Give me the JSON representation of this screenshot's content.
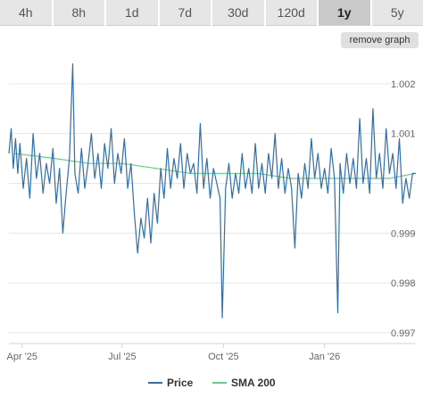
{
  "tabs": [
    {
      "label": "4h"
    },
    {
      "label": "8h"
    },
    {
      "label": "1d"
    },
    {
      "label": "7d"
    },
    {
      "label": "30d"
    },
    {
      "label": "120d"
    },
    {
      "label": "1y",
      "active": true
    },
    {
      "label": "5y"
    }
  ],
  "remove_graph_label": "remove graph",
  "colors": {
    "price": "#2f6fab",
    "sma": "#5fd38a",
    "grid": "#e6e6e6"
  },
  "chart_data": {
    "type": "line",
    "ylim": [
      0.9968,
      1.0025
    ],
    "yticks": [
      0.997,
      0.998,
      0.999,
      1.0,
      1.001,
      1.002
    ],
    "ytick_labels": [
      "0.997",
      "0.998",
      "0.999",
      "",
      "1.001",
      "1.002"
    ],
    "xrange": [
      "2025-03-20",
      "2026-03-25"
    ],
    "xticks": [
      {
        "date": "2025-04-01",
        "label": "Apr '25"
      },
      {
        "date": "2025-07-01",
        "label": "Jul '25"
      },
      {
        "date": "2025-10-01",
        "label": "Oct '25"
      },
      {
        "date": "2026-01-01",
        "label": "Jan '26"
      }
    ],
    "legend_position": "bottom",
    "series": [
      {
        "name": "Price",
        "values": [
          [
            "2025-03-20",
            1.0006
          ],
          [
            "2025-03-22",
            1.0011
          ],
          [
            "2025-03-24",
            1.0003
          ],
          [
            "2025-03-26",
            1.0009
          ],
          [
            "2025-03-28",
            1.0002
          ],
          [
            "2025-03-30",
            1.0008
          ],
          [
            "2025-04-02",
            0.9999
          ],
          [
            "2025-04-05",
            1.0005
          ],
          [
            "2025-04-08",
            0.9997
          ],
          [
            "2025-04-11",
            1.001
          ],
          [
            "2025-04-14",
            1.0001
          ],
          [
            "2025-04-17",
            1.0006
          ],
          [
            "2025-04-20",
            0.9998
          ],
          [
            "2025-04-23",
            1.0004
          ],
          [
            "2025-04-26",
            1.0
          ],
          [
            "2025-04-29",
            1.0007
          ],
          [
            "2025-05-02",
            0.9996
          ],
          [
            "2025-05-05",
            1.0003
          ],
          [
            "2025-05-08",
            0.999
          ],
          [
            "2025-05-11",
            0.9998
          ],
          [
            "2025-05-14",
            1.0005
          ],
          [
            "2025-05-17",
            1.0024
          ],
          [
            "2025-05-19",
            1.0002
          ],
          [
            "2025-05-22",
            0.9998
          ],
          [
            "2025-05-25",
            1.0007
          ],
          [
            "2025-05-28",
            0.9999
          ],
          [
            "2025-05-31",
            1.0004
          ],
          [
            "2025-06-03",
            1.001
          ],
          [
            "2025-06-06",
            1.0001
          ],
          [
            "2025-06-09",
            1.0006
          ],
          [
            "2025-06-12",
            0.9999
          ],
          [
            "2025-06-15",
            1.0008
          ],
          [
            "2025-06-18",
            1.0003
          ],
          [
            "2025-06-21",
            1.0011
          ],
          [
            "2025-06-24",
            1.0
          ],
          [
            "2025-06-27",
            1.0006
          ],
          [
            "2025-06-30",
            1.0002
          ],
          [
            "2025-07-03",
            1.0009
          ],
          [
            "2025-07-06",
            0.9999
          ],
          [
            "2025-07-09",
            1.0004
          ],
          [
            "2025-07-12",
            0.9994
          ],
          [
            "2025-07-15",
            0.9986
          ],
          [
            "2025-07-18",
            0.9993
          ],
          [
            "2025-07-21",
            0.9989
          ],
          [
            "2025-07-24",
            0.9997
          ],
          [
            "2025-07-27",
            0.9988
          ],
          [
            "2025-07-30",
            0.9998
          ],
          [
            "2025-08-02",
            0.9992
          ],
          [
            "2025-08-05",
            1.0003
          ],
          [
            "2025-08-08",
            0.9997
          ],
          [
            "2025-08-11",
            1.0007
          ],
          [
            "2025-08-14",
            0.9999
          ],
          [
            "2025-08-17",
            1.0005
          ],
          [
            "2025-08-20",
            1.0001
          ],
          [
            "2025-08-23",
            1.0008
          ],
          [
            "2025-08-26",
            0.9999
          ],
          [
            "2025-08-29",
            1.0006
          ],
          [
            "2025-09-01",
            1.0002
          ],
          [
            "2025-09-04",
            1.0004
          ],
          [
            "2025-09-07",
            0.9998
          ],
          [
            "2025-09-10",
            1.0012
          ],
          [
            "2025-09-13",
            0.9999
          ],
          [
            "2025-09-16",
            1.0005
          ],
          [
            "2025-09-19",
            0.9997
          ],
          [
            "2025-09-22",
            1.0003
          ],
          [
            "2025-09-25",
            1.0
          ],
          [
            "2025-09-28",
            0.9997
          ],
          [
            "2025-09-30",
            0.9973
          ],
          [
            "2025-10-03",
            0.9999
          ],
          [
            "2025-10-06",
            1.0004
          ],
          [
            "2025-10-09",
            0.9997
          ],
          [
            "2025-10-12",
            1.0002
          ],
          [
            "2025-10-15",
            0.9998
          ],
          [
            "2025-10-18",
            1.0006
          ],
          [
            "2025-10-21",
            0.9999
          ],
          [
            "2025-10-24",
            1.0003
          ],
          [
            "2025-10-27",
            0.9998
          ],
          [
            "2025-10-30",
            1.0008
          ],
          [
            "2025-11-02",
            0.9999
          ],
          [
            "2025-11-05",
            1.0004
          ],
          [
            "2025-11-08",
            0.9998
          ],
          [
            "2025-11-11",
            1.0006
          ],
          [
            "2025-11-14",
            1.0001
          ],
          [
            "2025-11-17",
            1.001
          ],
          [
            "2025-11-20",
            0.9999
          ],
          [
            "2025-11-23",
            1.0005
          ],
          [
            "2025-11-26",
            0.9998
          ],
          [
            "2025-11-29",
            1.0003
          ],
          [
            "2025-12-02",
            0.9999
          ],
          [
            "2025-12-05",
            0.9987
          ],
          [
            "2025-12-08",
            1.0002
          ],
          [
            "2025-12-11",
            0.9997
          ],
          [
            "2025-12-14",
            1.0004
          ],
          [
            "2025-12-17",
            0.9999
          ],
          [
            "2025-12-20",
            1.0009
          ],
          [
            "2025-12-23",
            1.0001
          ],
          [
            "2025-12-26",
            1.0006
          ],
          [
            "2025-12-29",
            0.9999
          ],
          [
            "2026-01-01",
            1.0003
          ],
          [
            "2026-01-04",
            0.9998
          ],
          [
            "2026-01-07",
            1.0007
          ],
          [
            "2026-01-10",
            1.0001
          ],
          [
            "2026-01-13",
            0.9974
          ],
          [
            "2026-01-15",
            1.0004
          ],
          [
            "2026-01-18",
            0.9998
          ],
          [
            "2026-01-21",
            1.0006
          ],
          [
            "2026-01-24",
            1.0
          ],
          [
            "2026-01-27",
            1.0005
          ],
          [
            "2026-01-30",
            0.9999
          ],
          [
            "2026-02-02",
            1.0013
          ],
          [
            "2026-02-05",
            1.0
          ],
          [
            "2026-02-08",
            1.0005
          ],
          [
            "2026-02-11",
            0.9998
          ],
          [
            "2026-02-14",
            1.0015
          ],
          [
            "2026-02-17",
            1.0001
          ],
          [
            "2026-02-20",
            1.0006
          ],
          [
            "2026-02-23",
            0.9999
          ],
          [
            "2026-02-26",
            1.0011
          ],
          [
            "2026-03-01",
            1.0002
          ],
          [
            "2026-03-04",
            1.0006
          ],
          [
            "2026-03-07",
            0.9999
          ],
          [
            "2026-03-10",
            1.0009
          ],
          [
            "2026-03-13",
            0.9996
          ],
          [
            "2026-03-16",
            1.0001
          ],
          [
            "2026-03-19",
            0.9997
          ],
          [
            "2026-03-22",
            1.0002
          ],
          [
            "2026-03-25",
            1.0002
          ]
        ]
      },
      {
        "name": "SMA 200",
        "values": [
          [
            "2025-03-25",
            1.0006
          ],
          [
            "2025-05-01",
            1.0005
          ],
          [
            "2025-06-01",
            1.0004
          ],
          [
            "2025-07-01",
            1.0004
          ],
          [
            "2025-08-01",
            1.0003
          ],
          [
            "2025-09-01",
            1.0002
          ],
          [
            "2025-10-01",
            1.0002
          ],
          [
            "2025-11-01",
            1.0002
          ],
          [
            "2025-12-01",
            1.0001
          ],
          [
            "2026-01-01",
            1.0001
          ],
          [
            "2026-02-01",
            1.0001
          ],
          [
            "2026-03-01",
            1.0001
          ],
          [
            "2026-03-25",
            1.0002
          ]
        ]
      }
    ]
  }
}
